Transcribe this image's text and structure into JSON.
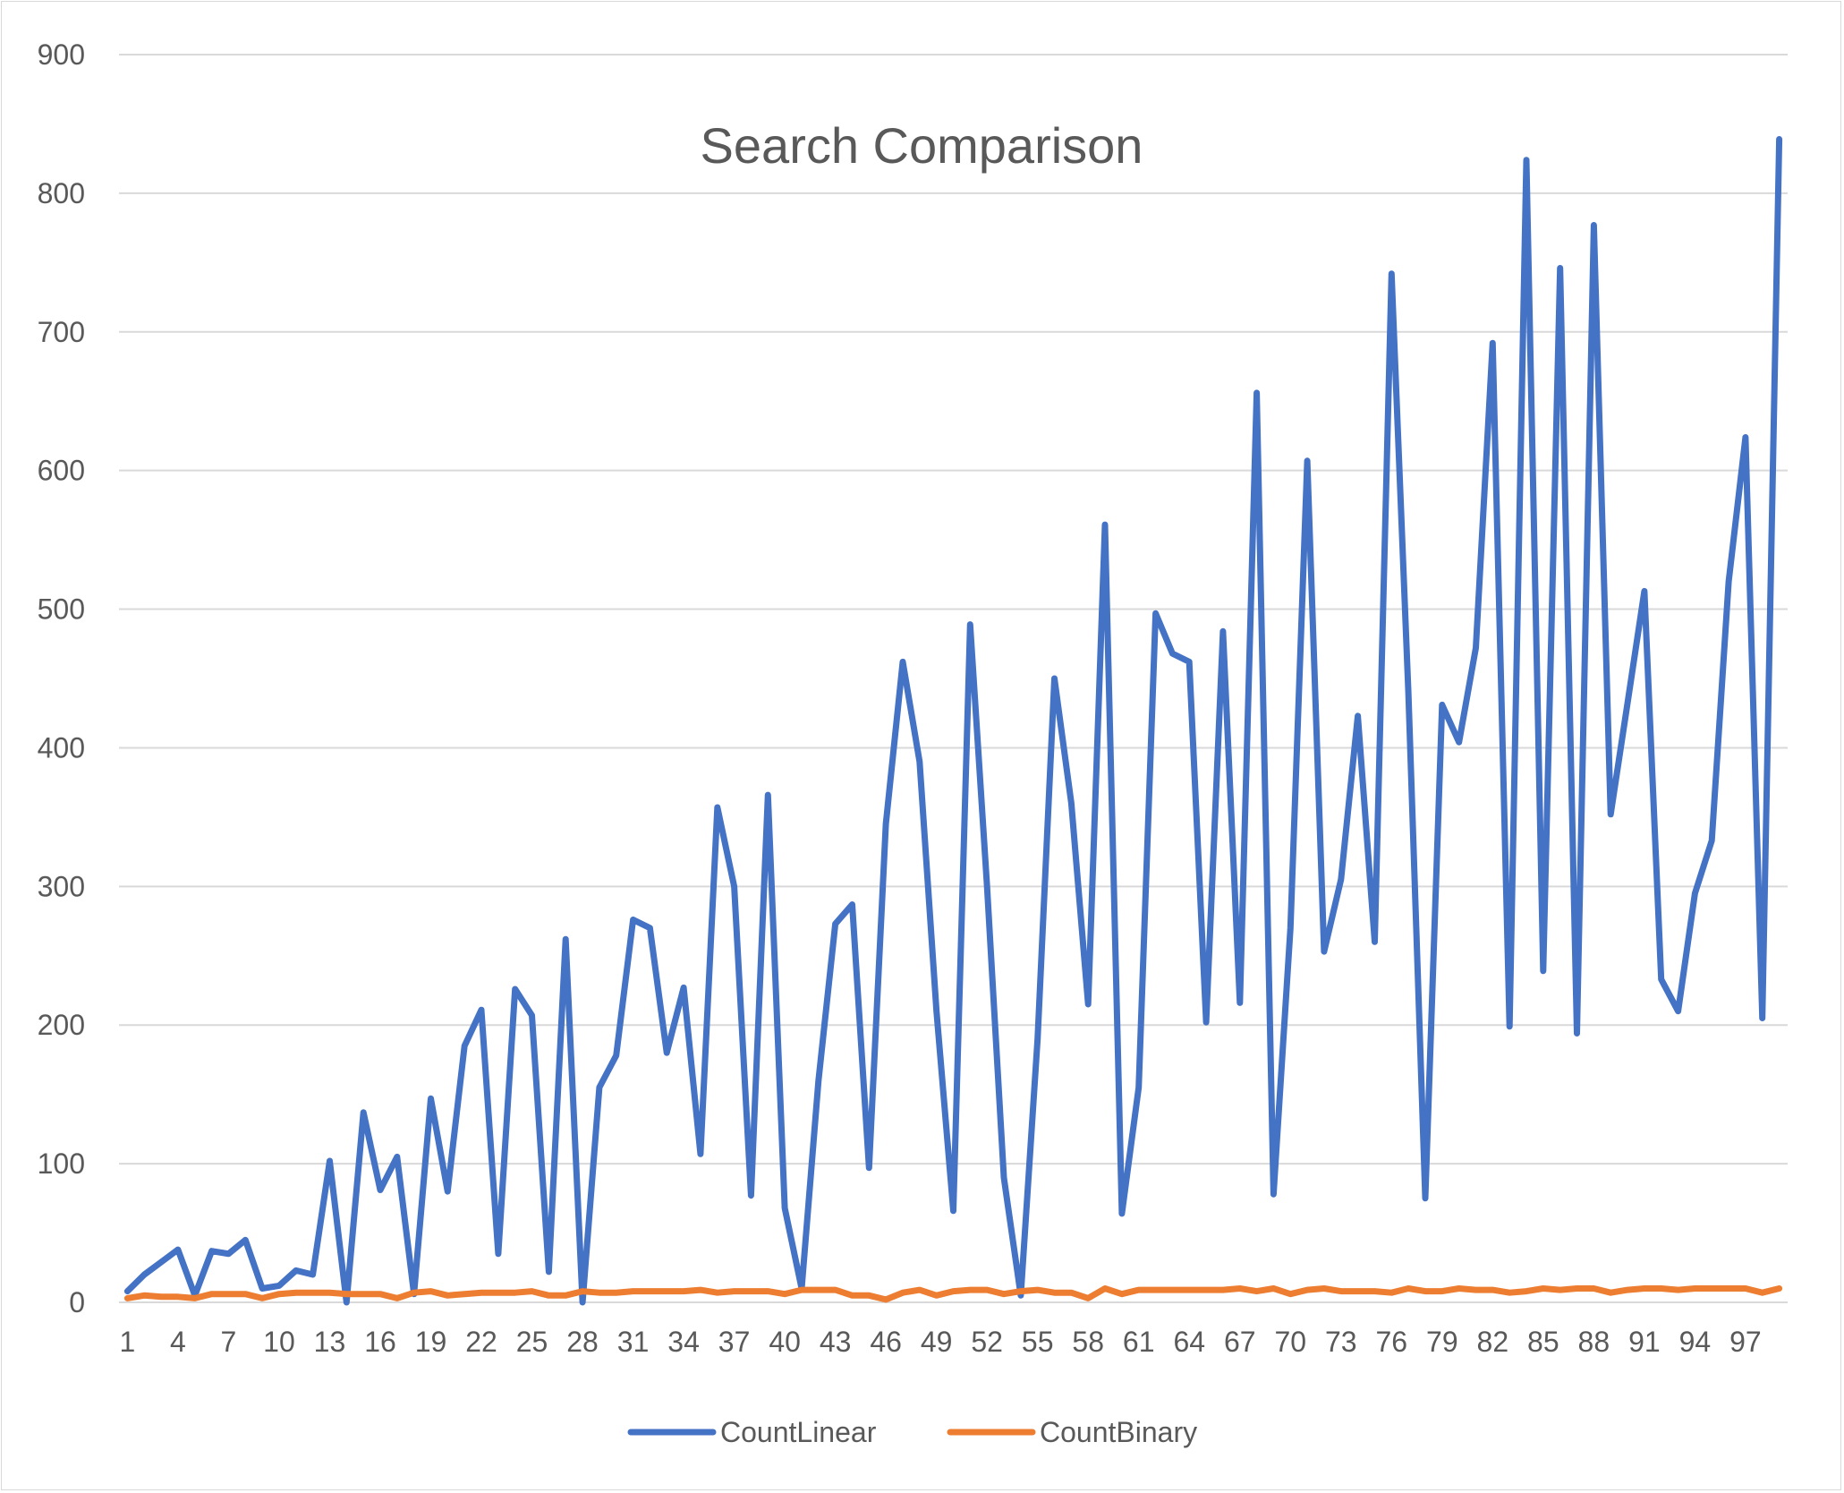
{
  "chart_data": {
    "type": "line",
    "title": "Search Comparison",
    "xlabel": "",
    "ylabel": "",
    "ylim": [
      0,
      900
    ],
    "yticks": [
      0,
      100,
      200,
      300,
      400,
      500,
      600,
      700,
      800,
      900
    ],
    "grid": true,
    "legend_position": "bottom",
    "x": [
      1,
      2,
      3,
      4,
      5,
      6,
      7,
      8,
      9,
      10,
      11,
      12,
      13,
      14,
      15,
      16,
      17,
      18,
      19,
      20,
      21,
      22,
      23,
      24,
      25,
      26,
      27,
      28,
      29,
      30,
      31,
      32,
      33,
      34,
      35,
      36,
      37,
      38,
      39,
      40,
      41,
      42,
      43,
      44,
      45,
      46,
      47,
      48,
      49,
      50,
      51,
      52,
      53,
      54,
      55,
      56,
      57,
      58,
      59,
      60,
      61,
      62,
      63,
      64,
      65,
      66,
      67,
      68,
      69,
      70,
      71,
      72,
      73,
      74,
      75,
      76,
      77,
      78,
      79,
      80,
      81,
      82,
      83,
      84,
      85,
      86,
      87,
      88,
      89,
      90,
      91,
      92,
      93,
      94,
      95,
      96,
      97,
      98,
      99
    ],
    "xtick_labels": [
      "1",
      "4",
      "7",
      "10",
      "13",
      "16",
      "19",
      "22",
      "25",
      "28",
      "31",
      "34",
      "37",
      "40",
      "43",
      "46",
      "49",
      "52",
      "55",
      "58",
      "61",
      "64",
      "67",
      "70",
      "73",
      "76",
      "79",
      "82",
      "85",
      "88",
      "91",
      "94",
      "97"
    ],
    "series": [
      {
        "name": "CountLinear",
        "color": "#4472c4",
        "values": [
          8,
          20,
          29,
          38,
          5,
          37,
          35,
          45,
          10,
          12,
          23,
          20,
          102,
          0,
          137,
          81,
          105,
          6,
          147,
          80,
          185,
          211,
          35,
          226,
          207,
          22,
          262,
          0,
          155,
          178,
          276,
          270,
          180,
          227,
          107,
          357,
          300,
          77,
          366,
          68,
          10,
          160,
          273,
          287,
          97,
          345,
          462,
          390,
          210,
          66,
          489,
          300,
          90,
          5,
          190,
          450,
          360,
          215,
          561,
          64,
          155,
          497,
          468,
          462,
          202,
          484,
          216,
          656,
          78,
          270,
          607,
          253,
          305,
          423,
          260,
          742,
          440,
          75,
          431,
          404,
          472,
          692,
          199,
          824,
          239,
          746,
          194,
          777,
          352,
          432,
          513,
          233,
          210,
          295,
          333,
          520,
          624,
          205,
          839
        ]
      },
      {
        "name": "CountBinary",
        "color": "#ed7d31",
        "values": [
          3,
          5,
          4,
          4,
          3,
          6,
          6,
          6,
          3,
          6,
          7,
          7,
          7,
          6,
          6,
          6,
          3,
          7,
          8,
          5,
          6,
          7,
          7,
          7,
          8,
          5,
          5,
          8,
          7,
          7,
          8,
          8,
          8,
          8,
          9,
          7,
          8,
          8,
          8,
          6,
          9,
          9,
          9,
          5,
          5,
          2,
          7,
          9,
          5,
          8,
          9,
          9,
          6,
          8,
          9,
          7,
          7,
          3,
          10,
          6,
          9,
          9,
          9,
          9,
          9,
          9,
          10,
          8,
          10,
          6,
          9,
          10,
          8,
          8,
          8,
          7,
          10,
          8,
          8,
          10,
          9,
          9,
          7,
          8,
          10,
          9,
          10,
          10,
          7,
          9,
          10,
          10,
          9,
          10,
          10,
          10,
          10,
          7,
          10
        ]
      }
    ]
  }
}
